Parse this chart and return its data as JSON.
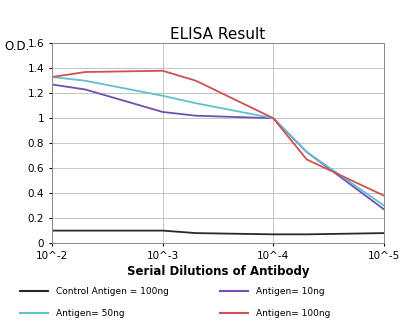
{
  "title": "ELISA Result",
  "ylabel": "O.D.",
  "xlabel": "Serial Dilutions of Antibody",
  "xlim_left": 0.01,
  "xlim_right": 1e-05,
  "ylim": [
    0,
    1.6
  ],
  "yticks": [
    0,
    0.2,
    0.4,
    0.6,
    0.8,
    1.0,
    1.2,
    1.4,
    1.6
  ],
  "xtick_positions": [
    0.01,
    0.001,
    0.0001,
    1e-05
  ],
  "xtick_labels": [
    "10^-2",
    "10^-3",
    "10^-4",
    "10^-5"
  ],
  "series": [
    {
      "label": "Control Antigen = 100ng",
      "color": "#2a2a2a",
      "x": [
        0.01,
        0.005,
        0.001,
        0.0005,
        0.0001,
        5e-05,
        1e-05
      ],
      "y": [
        0.1,
        0.1,
        0.1,
        0.08,
        0.07,
        0.07,
        0.08
      ]
    },
    {
      "label": "Antigen= 10ng",
      "color": "#7050b0",
      "x": [
        0.01,
        0.005,
        0.001,
        0.0005,
        0.0001,
        5e-05,
        1e-05
      ],
      "y": [
        1.27,
        1.23,
        1.05,
        1.02,
        1.0,
        0.73,
        0.27
      ]
    },
    {
      "label": "Antigen= 50ng",
      "color": "#60c0d0",
      "x": [
        0.01,
        0.005,
        0.001,
        0.0005,
        0.0001,
        5e-05,
        1e-05
      ],
      "y": [
        1.33,
        1.3,
        1.18,
        1.12,
        1.0,
        0.73,
        0.3
      ]
    },
    {
      "label": "Antigen= 100ng",
      "color": "#d05050",
      "x": [
        0.01,
        0.005,
        0.001,
        0.0005,
        0.0001,
        5e-05,
        1e-05
      ],
      "y": [
        1.33,
        1.37,
        1.38,
        1.3,
        1.0,
        0.67,
        0.38
      ]
    }
  ],
  "legend_rows": [
    [
      {
        "label": "Control Antigen = 100ng",
        "color": "#2a2a2a"
      },
      {
        "label": "Antigen= 10ng",
        "color": "#7050b0"
      }
    ],
    [
      {
        "label": "Antigen= 50ng",
        "color": "#60c0d0"
      },
      {
        "label": "Antigen= 100ng",
        "color": "#d05050"
      }
    ]
  ],
  "background_color": "#ffffff",
  "grid_color": "#bbbbbb",
  "title_fontsize": 11,
  "label_fontsize": 8,
  "tick_fontsize": 7.5
}
